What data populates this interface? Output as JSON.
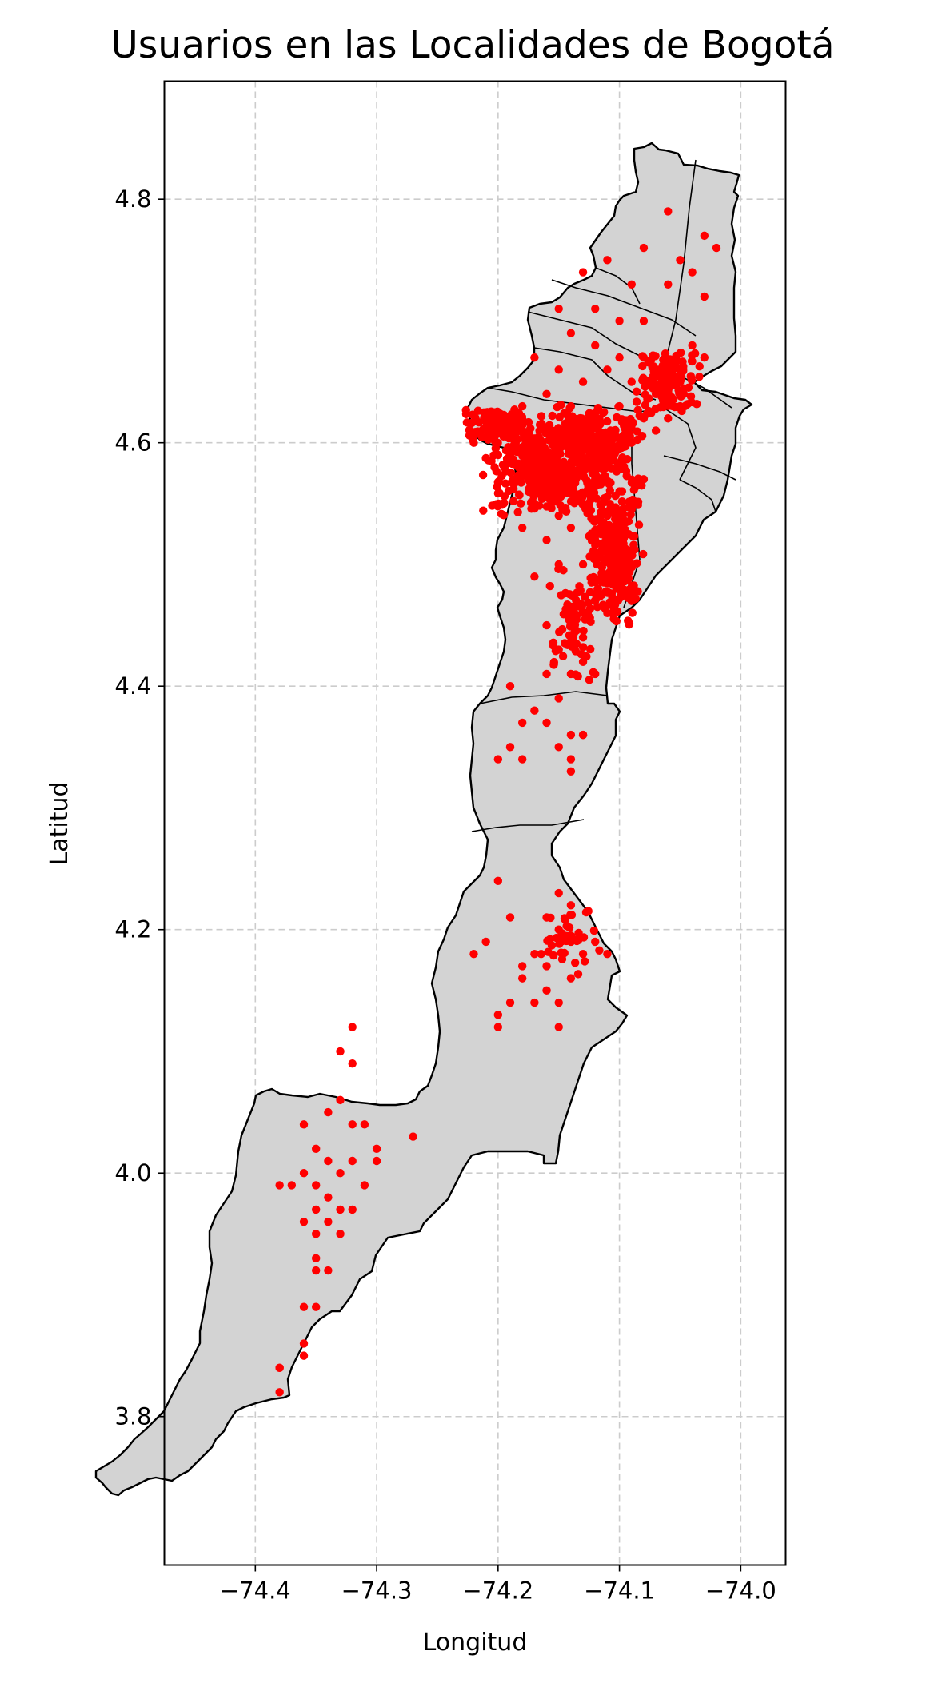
{
  "chart_data": {
    "type": "scatter",
    "title": "Usuarios en las Localidades de Bogotá",
    "xlabel": "Longitud",
    "ylabel": "Latitud",
    "xlim": [
      -74.475,
      -73.963
    ],
    "ylim": [
      3.678,
      4.897
    ],
    "x_ticks": [
      -74.4,
      -74.3,
      -74.2,
      -74.1,
      -74.0
    ],
    "x_tick_labels": [
      "−74.4",
      "−74.3",
      "−74.2",
      "−74.1",
      "−74.0"
    ],
    "y_ticks": [
      3.8,
      4.0,
      4.2,
      4.4,
      4.6,
      4.8
    ],
    "y_tick_labels": [
      "3.8",
      "4.0",
      "4.2",
      "4.4",
      "4.6",
      "4.8"
    ],
    "grid": true,
    "map_fill": "#d3d3d3",
    "map_edge": "#000000",
    "point_color": "#ff0000",
    "points": [
      [
        -74.06,
        4.79
      ],
      [
        -74.03,
        4.77
      ],
      [
        -74.02,
        4.76
      ],
      [
        -74.04,
        4.74
      ],
      [
        -74.03,
        4.72
      ],
      [
        -74.05,
        4.75
      ],
      [
        -74.11,
        4.75
      ],
      [
        -74.08,
        4.76
      ],
      [
        -74.09,
        4.73
      ],
      [
        -74.06,
        4.73
      ],
      [
        -74.13,
        4.74
      ],
      [
        -74.12,
        4.71
      ],
      [
        -74.1,
        4.7
      ],
      [
        -74.08,
        4.7
      ],
      [
        -74.15,
        4.71
      ],
      [
        -74.14,
        4.69
      ],
      [
        -74.12,
        4.68
      ],
      [
        -74.1,
        4.67
      ],
      [
        -74.08,
        4.67
      ],
      [
        -74.06,
        4.66
      ],
      [
        -74.04,
        4.68
      ],
      [
        -74.03,
        4.67
      ],
      [
        -74.05,
        4.65
      ],
      [
        -74.07,
        4.64
      ],
      [
        -74.09,
        4.65
      ],
      [
        -74.11,
        4.66
      ],
      [
        -74.13,
        4.65
      ],
      [
        -74.15,
        4.66
      ],
      [
        -74.17,
        4.67
      ],
      [
        -74.16,
        4.64
      ],
      [
        -74.18,
        4.63
      ],
      [
        -74.14,
        4.63
      ],
      [
        -74.12,
        4.62
      ],
      [
        -74.1,
        4.63
      ],
      [
        -74.08,
        4.62
      ],
      [
        -74.06,
        4.62
      ],
      [
        -74.05,
        4.63
      ],
      [
        -74.07,
        4.61
      ],
      [
        -74.09,
        4.6
      ],
      [
        -74.11,
        4.59
      ],
      [
        -74.13,
        4.6
      ],
      [
        -74.15,
        4.61
      ],
      [
        -74.17,
        4.6
      ],
      [
        -74.19,
        4.61
      ],
      [
        -74.21,
        4.62
      ],
      [
        -74.22,
        4.6
      ],
      [
        -74.2,
        4.59
      ],
      [
        -74.18,
        4.58
      ],
      [
        -74.16,
        4.57
      ],
      [
        -74.14,
        4.58
      ],
      [
        -74.12,
        4.57
      ],
      [
        -74.1,
        4.56
      ],
      [
        -74.08,
        4.57
      ],
      [
        -74.09,
        4.55
      ],
      [
        -74.11,
        4.54
      ],
      [
        -74.13,
        4.55
      ],
      [
        -74.15,
        4.54
      ],
      [
        -74.17,
        4.55
      ],
      [
        -74.18,
        4.53
      ],
      [
        -74.16,
        4.52
      ],
      [
        -74.14,
        4.53
      ],
      [
        -74.12,
        4.52
      ],
      [
        -74.1,
        4.51
      ],
      [
        -74.09,
        4.5
      ],
      [
        -74.11,
        4.49
      ],
      [
        -74.13,
        4.5
      ],
      [
        -74.15,
        4.5
      ],
      [
        -74.17,
        4.49
      ],
      [
        -74.1,
        4.48
      ],
      [
        -74.12,
        4.47
      ],
      [
        -74.14,
        4.46
      ],
      [
        -74.16,
        4.45
      ],
      [
        -74.09,
        4.47
      ],
      [
        -74.11,
        4.46
      ],
      [
        -74.13,
        4.44
      ],
      [
        -74.15,
        4.43
      ],
      [
        -74.16,
        4.41
      ],
      [
        -74.14,
        4.41
      ],
      [
        -74.13,
        4.42
      ],
      [
        -74.12,
        4.41
      ],
      [
        -74.15,
        4.39
      ],
      [
        -74.17,
        4.38
      ],
      [
        -74.16,
        4.37
      ],
      [
        -74.14,
        4.36
      ],
      [
        -74.13,
        4.36
      ],
      [
        -74.19,
        4.4
      ],
      [
        -74.18,
        4.37
      ],
      [
        -74.19,
        4.35
      ],
      [
        -74.2,
        4.34
      ],
      [
        -74.18,
        4.34
      ],
      [
        -74.15,
        4.35
      ],
      [
        -74.14,
        4.34
      ],
      [
        -74.14,
        4.33
      ],
      [
        -74.13,
        4.36
      ],
      [
        -74.2,
        4.24
      ],
      [
        -74.15,
        4.23
      ],
      [
        -74.14,
        4.22
      ],
      [
        -74.16,
        4.21
      ],
      [
        -74.19,
        4.21
      ],
      [
        -74.15,
        4.2
      ],
      [
        -74.14,
        4.19
      ],
      [
        -74.12,
        4.19
      ],
      [
        -74.11,
        4.18
      ],
      [
        -74.13,
        4.18
      ],
      [
        -74.17,
        4.18
      ],
      [
        -74.18,
        4.17
      ],
      [
        -74.16,
        4.17
      ],
      [
        -74.22,
        4.18
      ],
      [
        -74.21,
        4.19
      ],
      [
        -74.18,
        4.16
      ],
      [
        -74.16,
        4.15
      ],
      [
        -74.14,
        4.16
      ],
      [
        -74.17,
        4.14
      ],
      [
        -74.19,
        4.14
      ],
      [
        -74.15,
        4.14
      ],
      [
        -74.2,
        4.13
      ],
      [
        -74.2,
        4.12
      ],
      [
        -74.15,
        4.12
      ],
      [
        -74.32,
        4.12
      ],
      [
        -74.33,
        4.1
      ],
      [
        -74.32,
        4.09
      ],
      [
        -74.33,
        4.06
      ],
      [
        -74.34,
        4.05
      ],
      [
        -74.36,
        4.04
      ],
      [
        -74.32,
        4.04
      ],
      [
        -74.31,
        4.04
      ],
      [
        -74.27,
        4.03
      ],
      [
        -74.35,
        4.02
      ],
      [
        -74.3,
        4.02
      ],
      [
        -74.34,
        4.01
      ],
      [
        -74.32,
        4.01
      ],
      [
        -74.3,
        4.01
      ],
      [
        -74.36,
        4.0
      ],
      [
        -74.33,
        4.0
      ],
      [
        -74.35,
        3.99
      ],
      [
        -74.34,
        3.98
      ],
      [
        -74.31,
        3.99
      ],
      [
        -74.37,
        3.99
      ],
      [
        -74.38,
        3.99
      ],
      [
        -74.33,
        3.97
      ],
      [
        -74.35,
        3.97
      ],
      [
        -74.36,
        3.96
      ],
      [
        -74.34,
        3.96
      ],
      [
        -74.32,
        3.97
      ],
      [
        -74.35,
        3.95
      ],
      [
        -74.33,
        3.95
      ],
      [
        -74.35,
        3.93
      ],
      [
        -74.34,
        3.92
      ],
      [
        -74.35,
        3.92
      ],
      [
        -74.35,
        3.89
      ],
      [
        -74.36,
        3.89
      ],
      [
        -74.36,
        3.86
      ],
      [
        -74.36,
        3.85
      ],
      [
        -74.38,
        3.84
      ],
      [
        -74.38,
        3.84
      ],
      [
        -74.38,
        3.82
      ]
    ]
  }
}
